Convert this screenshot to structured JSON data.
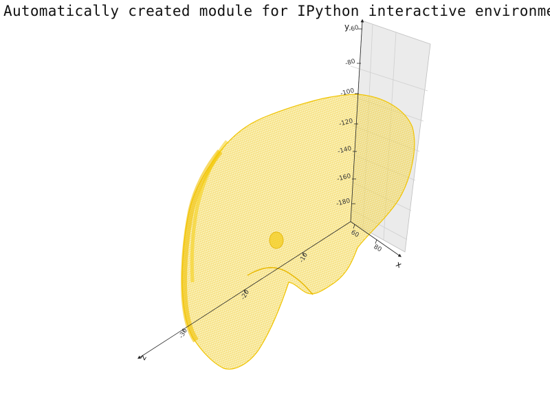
{
  "window": {
    "title": "Automatically created module for IPython interactive environment"
  },
  "chart_data": {
    "type": "3d-mesh",
    "title": "Automatically created module for IPython interactive environment",
    "mesh_color": "#f5c800",
    "pane_color": "#ebebeb",
    "axes": {
      "x": {
        "label": "x",
        "ticks": [
          "60",
          "80"
        ]
      },
      "y": {
        "label": "y",
        "ticks": [
          "-60",
          "-80",
          "-100",
          "-120",
          "-140",
          "-160",
          "-180"
        ]
      },
      "z": {
        "label": "z",
        "ticks": [
          "-10",
          "-20",
          "-30"
        ]
      }
    },
    "grid": true,
    "legend": "none"
  }
}
